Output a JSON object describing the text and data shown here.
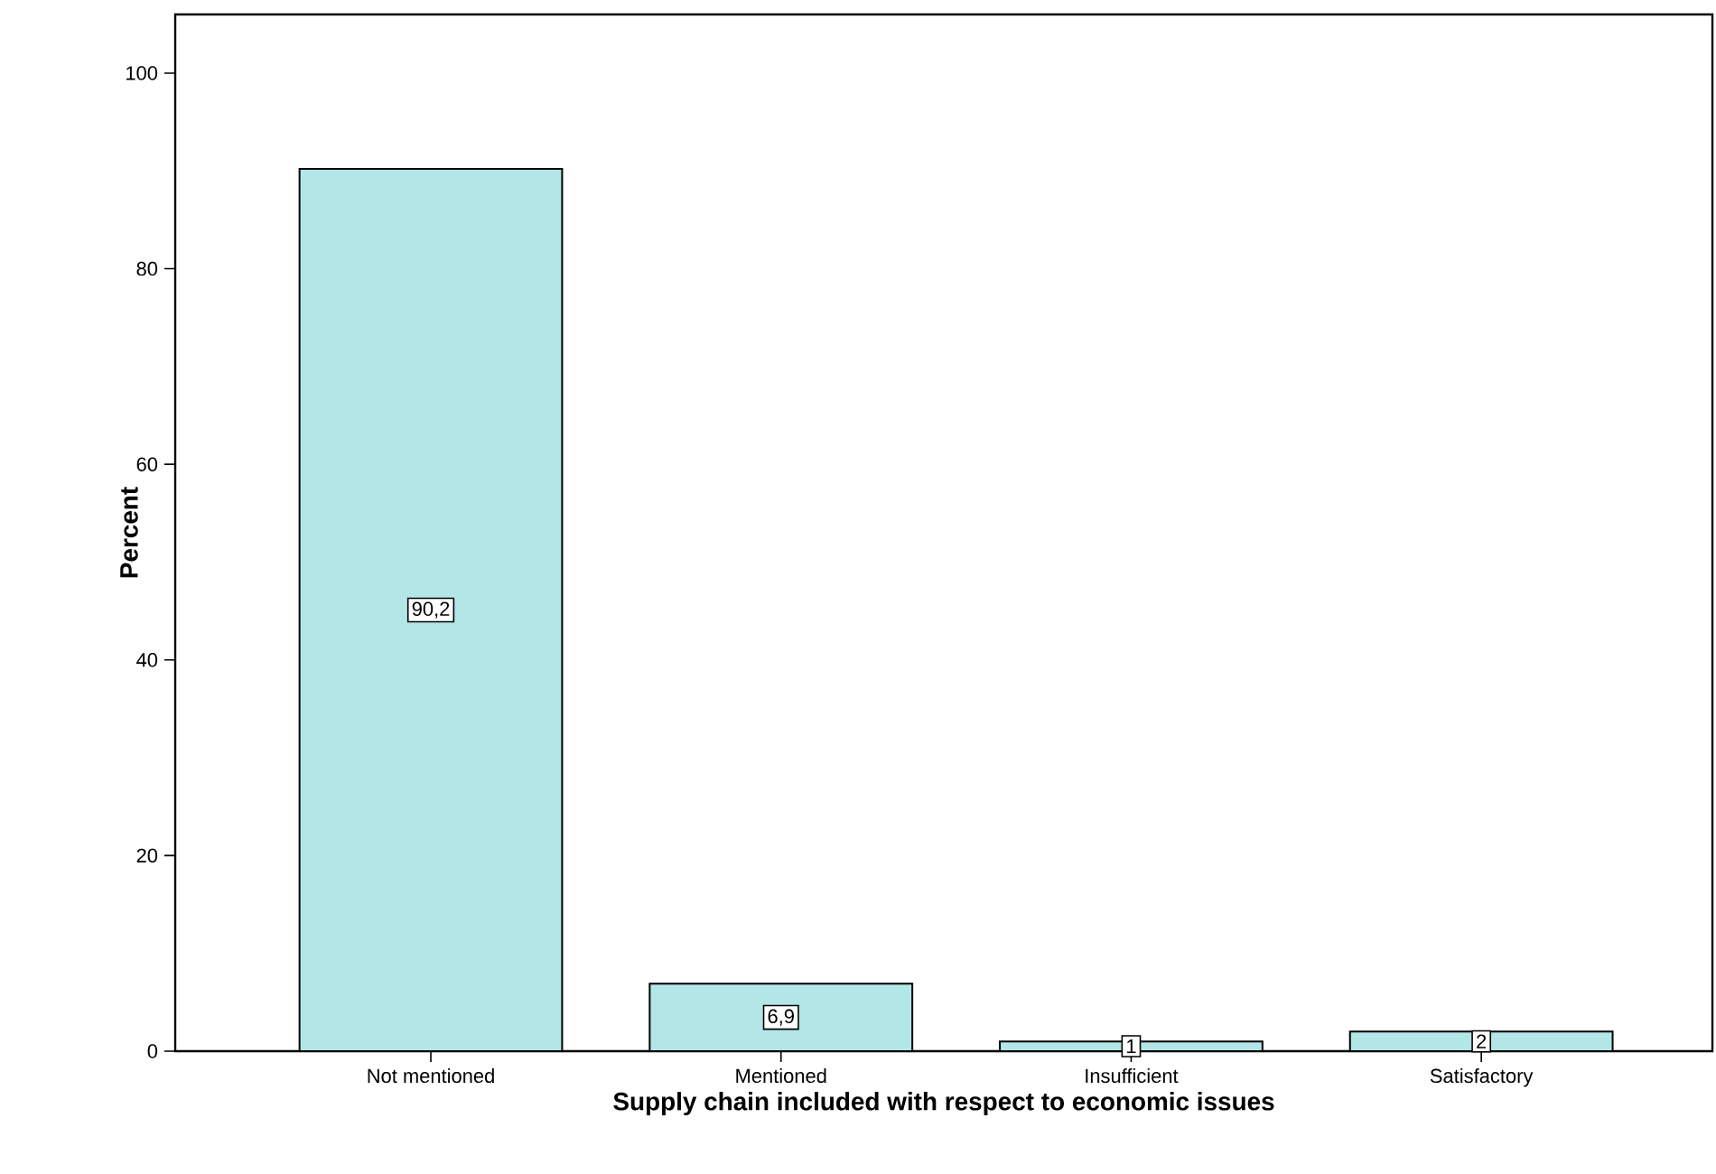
{
  "chart_data": {
    "type": "bar",
    "xlabel": "Supply chain included with respect to economic issues",
    "ylabel": "Percent",
    "categories": [
      "Not mentioned",
      "Mentioned",
      "Insufficient",
      "Satisfactory"
    ],
    "values": [
      90.2,
      6.9,
      1,
      2
    ],
    "value_labels": [
      "90,2",
      "6,9",
      "1",
      "2"
    ],
    "color": "#b3e6e6",
    "ylim": [
      0,
      106
    ],
    "yticks": [
      0,
      20,
      40,
      60,
      80,
      100
    ]
  }
}
